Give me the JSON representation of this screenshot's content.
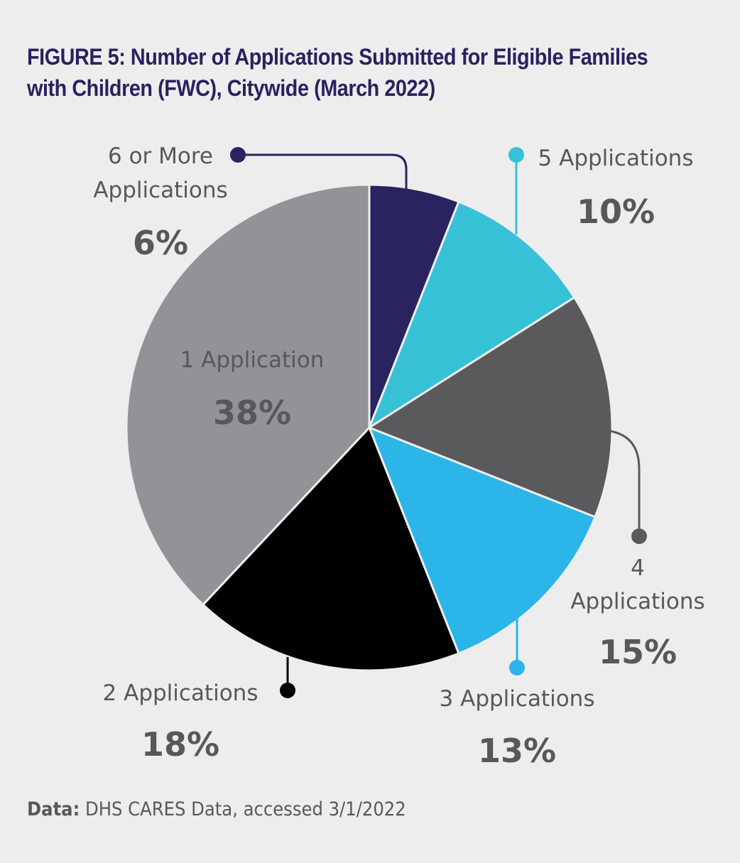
{
  "chart_data": {
    "type": "pie",
    "title_prefix": "FIGURE 5:",
    "title": "Number of Applications Submitted for Eligible Families with Children (FWC), Citywide (March 2022)",
    "slices": [
      {
        "label": "6 or More Applications",
        "label_lines": [
          "6 or More",
          "Applications"
        ],
        "value": 6,
        "display": "6%",
        "color": "#29235f"
      },
      {
        "label": "5 Applications",
        "label_lines": [
          "5 Applications"
        ],
        "value": 10,
        "display": "10%",
        "color": "#37c1d7"
      },
      {
        "label": "4 Applications",
        "label_lines": [
          "4",
          "Applications"
        ],
        "value": 15,
        "display": "15%",
        "color": "#5a5a5c"
      },
      {
        "label": "3 Applications",
        "label_lines": [
          "3 Applications"
        ],
        "value": 13,
        "display": "13%",
        "color": "#2bb5e8"
      },
      {
        "label": "2 Applications",
        "label_lines": [
          "2 Applications"
        ],
        "value": 18,
        "display": "18%",
        "color": "#000000"
      },
      {
        "label": "1 Application",
        "label_lines": [
          "1 Application"
        ],
        "value": 38,
        "display": "38%",
        "color": "#929396"
      }
    ],
    "start": "12 o'clock, clockwise",
    "legend": "none (callout labels)"
  },
  "footer": {
    "label": "Data:",
    "text": " DHS CARES Data, accessed 3/1/2022"
  }
}
